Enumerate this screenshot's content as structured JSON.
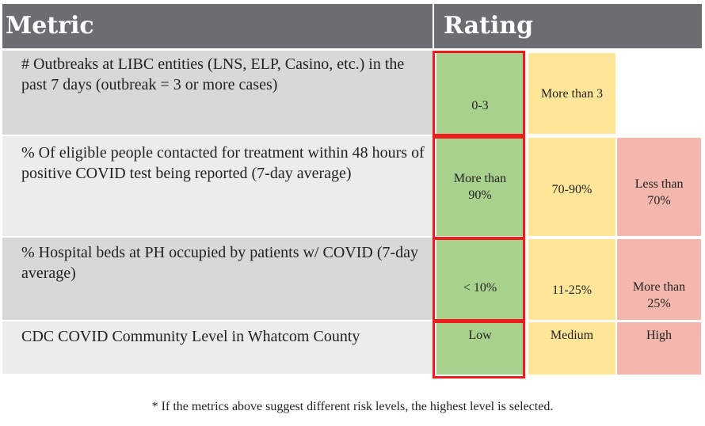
{
  "headers": {
    "metric": "Metric",
    "rating": "Rating"
  },
  "rows": [
    {
      "metric": "# Outbreaks at LIBC entities (LNS, ELP, Casino, etc.) in the past 7 days (outbreak = 3 or more cases)",
      "green": "0-3",
      "yellow": "More than 3",
      "red": ""
    },
    {
      "metric": "% Of eligible people contacted for treatment within 48 hours of positive COVID test being reported (7-day average)",
      "green": "More than 90%",
      "yellow": "70-90%",
      "red": "Less than 70%"
    },
    {
      "metric": "% Hospital beds at PH occupied by patients w/ COVID (7-day average)",
      "green": "< 10%",
      "yellow": "11-25%",
      "red": "More than 25%"
    },
    {
      "metric": "CDC COVID Community Level in Whatcom County",
      "green": "Low",
      "yellow": "Medium",
      "red": "High"
    }
  ],
  "footnote": "* If the metrics above suggest different risk levels, the highest level is selected.",
  "colors": {
    "header_bg": "#6d6c70",
    "green": "#a9d18e",
    "yellow": "#ffe699",
    "red": "#f4b7ae",
    "highlight": "#ee1c1c"
  }
}
